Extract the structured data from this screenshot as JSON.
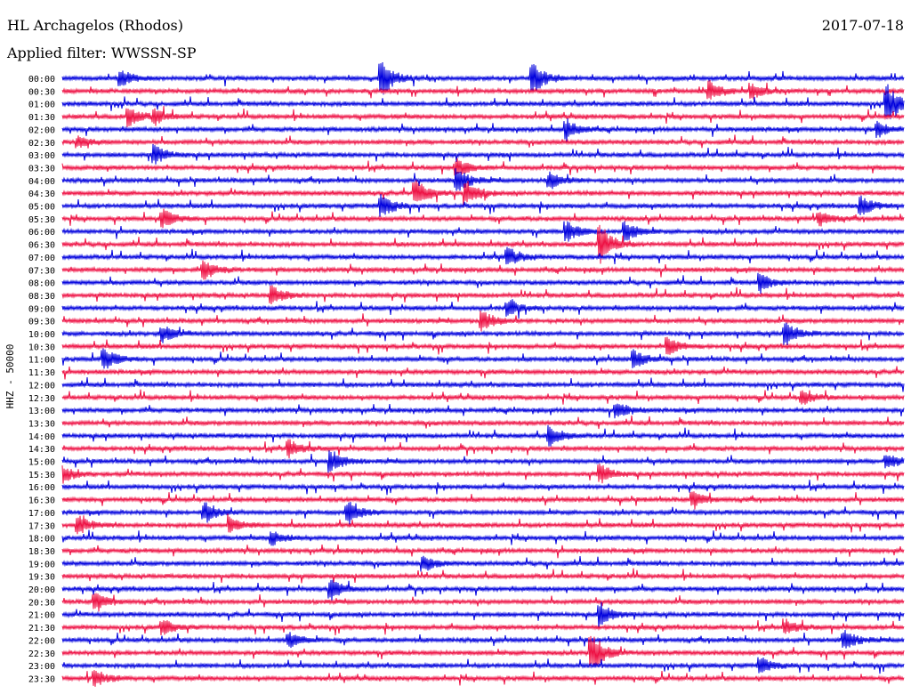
{
  "header": {
    "station": "HL Archagelos (Rhodos)",
    "date": "2017-07-18",
    "filter": "Applied filter: WWSSN-SP"
  },
  "chart_data": {
    "type": "line",
    "chart_kind": "helicorder",
    "ylabel": "HHZ - 50000",
    "colors": {
      "even_rows": "#0000dd",
      "odd_rows": "#ee1144"
    },
    "rows": [
      "00:00",
      "00:30",
      "01:00",
      "01:30",
      "02:00",
      "02:30",
      "03:00",
      "03:30",
      "04:00",
      "04:30",
      "05:00",
      "05:30",
      "06:00",
      "06:30",
      "07:00",
      "07:30",
      "08:00",
      "08:30",
      "09:00",
      "09:30",
      "10:00",
      "10:30",
      "11:00",
      "11:30",
      "12:00",
      "12:30",
      "13:00",
      "13:30",
      "14:00",
      "14:30",
      "15:00",
      "15:30",
      "16:00",
      "16:30",
      "17:00",
      "17:30",
      "18:00",
      "18:30",
      "19:00",
      "19:30",
      "20:00",
      "20:30",
      "21:00",
      "21:30",
      "22:00",
      "22:30",
      "23:00",
      "23:30"
    ],
    "events": [
      {
        "row": 0,
        "x": 0.07,
        "amp": 8
      },
      {
        "row": 0,
        "x": 0.38,
        "amp": 20
      },
      {
        "row": 0,
        "x": 0.56,
        "amp": 17
      },
      {
        "row": 1,
        "x": 0.77,
        "amp": 10
      },
      {
        "row": 1,
        "x": 0.82,
        "amp": 8
      },
      {
        "row": 2,
        "x": 0.98,
        "amp": 22
      },
      {
        "row": 3,
        "x": 0.08,
        "amp": 10
      },
      {
        "row": 3,
        "x": 0.11,
        "amp": 8
      },
      {
        "row": 4,
        "x": 0.6,
        "amp": 10
      },
      {
        "row": 4,
        "x": 0.97,
        "amp": 8
      },
      {
        "row": 5,
        "x": 0.02,
        "amp": 6
      },
      {
        "row": 6,
        "x": 0.11,
        "amp": 10
      },
      {
        "row": 7,
        "x": 0.47,
        "amp": 9
      },
      {
        "row": 8,
        "x": 0.47,
        "amp": 12
      },
      {
        "row": 8,
        "x": 0.58,
        "amp": 9
      },
      {
        "row": 9,
        "x": 0.42,
        "amp": 14
      },
      {
        "row": 9,
        "x": 0.48,
        "amp": 14
      },
      {
        "row": 10,
        "x": 0.38,
        "amp": 12
      },
      {
        "row": 10,
        "x": 0.95,
        "amp": 10
      },
      {
        "row": 11,
        "x": 0.12,
        "amp": 10
      },
      {
        "row": 11,
        "x": 0.9,
        "amp": 8
      },
      {
        "row": 12,
        "x": 0.6,
        "amp": 11
      },
      {
        "row": 12,
        "x": 0.67,
        "amp": 10
      },
      {
        "row": 13,
        "x": 0.64,
        "amp": 22
      },
      {
        "row": 14,
        "x": 0.53,
        "amp": 9
      },
      {
        "row": 15,
        "x": 0.17,
        "amp": 10
      },
      {
        "row": 16,
        "x": 0.83,
        "amp": 10
      },
      {
        "row": 17,
        "x": 0.25,
        "amp": 9
      },
      {
        "row": 18,
        "x": 0.53,
        "amp": 9
      },
      {
        "row": 19,
        "x": 0.5,
        "amp": 11
      },
      {
        "row": 20,
        "x": 0.12,
        "amp": 9
      },
      {
        "row": 20,
        "x": 0.86,
        "amp": 12
      },
      {
        "row": 21,
        "x": 0.72,
        "amp": 10
      },
      {
        "row": 22,
        "x": 0.05,
        "amp": 12
      },
      {
        "row": 22,
        "x": 0.68,
        "amp": 10
      },
      {
        "row": 25,
        "x": 0.88,
        "amp": 8
      },
      {
        "row": 26,
        "x": 0.66,
        "amp": 8
      },
      {
        "row": 28,
        "x": 0.58,
        "amp": 10
      },
      {
        "row": 29,
        "x": 0.27,
        "amp": 9
      },
      {
        "row": 30,
        "x": 0.32,
        "amp": 11
      },
      {
        "row": 30,
        "x": 0.98,
        "amp": 8
      },
      {
        "row": 31,
        "x": 0.0,
        "amp": 9
      },
      {
        "row": 31,
        "x": 0.64,
        "amp": 10
      },
      {
        "row": 33,
        "x": 0.75,
        "amp": 8
      },
      {
        "row": 34,
        "x": 0.17,
        "amp": 11
      },
      {
        "row": 34,
        "x": 0.34,
        "amp": 12
      },
      {
        "row": 35,
        "x": 0.02,
        "amp": 9
      },
      {
        "row": 35,
        "x": 0.2,
        "amp": 8
      },
      {
        "row": 36,
        "x": 0.25,
        "amp": 8
      },
      {
        "row": 38,
        "x": 0.43,
        "amp": 8
      },
      {
        "row": 40,
        "x": 0.32,
        "amp": 11
      },
      {
        "row": 41,
        "x": 0.04,
        "amp": 9
      },
      {
        "row": 42,
        "x": 0.64,
        "amp": 12
      },
      {
        "row": 43,
        "x": 0.12,
        "amp": 8
      },
      {
        "row": 43,
        "x": 0.86,
        "amp": 8
      },
      {
        "row": 44,
        "x": 0.27,
        "amp": 8
      },
      {
        "row": 44,
        "x": 0.93,
        "amp": 10
      },
      {
        "row": 45,
        "x": 0.63,
        "amp": 22
      },
      {
        "row": 46,
        "x": 0.83,
        "amp": 9
      },
      {
        "row": 47,
        "x": 0.04,
        "amp": 9
      }
    ]
  }
}
